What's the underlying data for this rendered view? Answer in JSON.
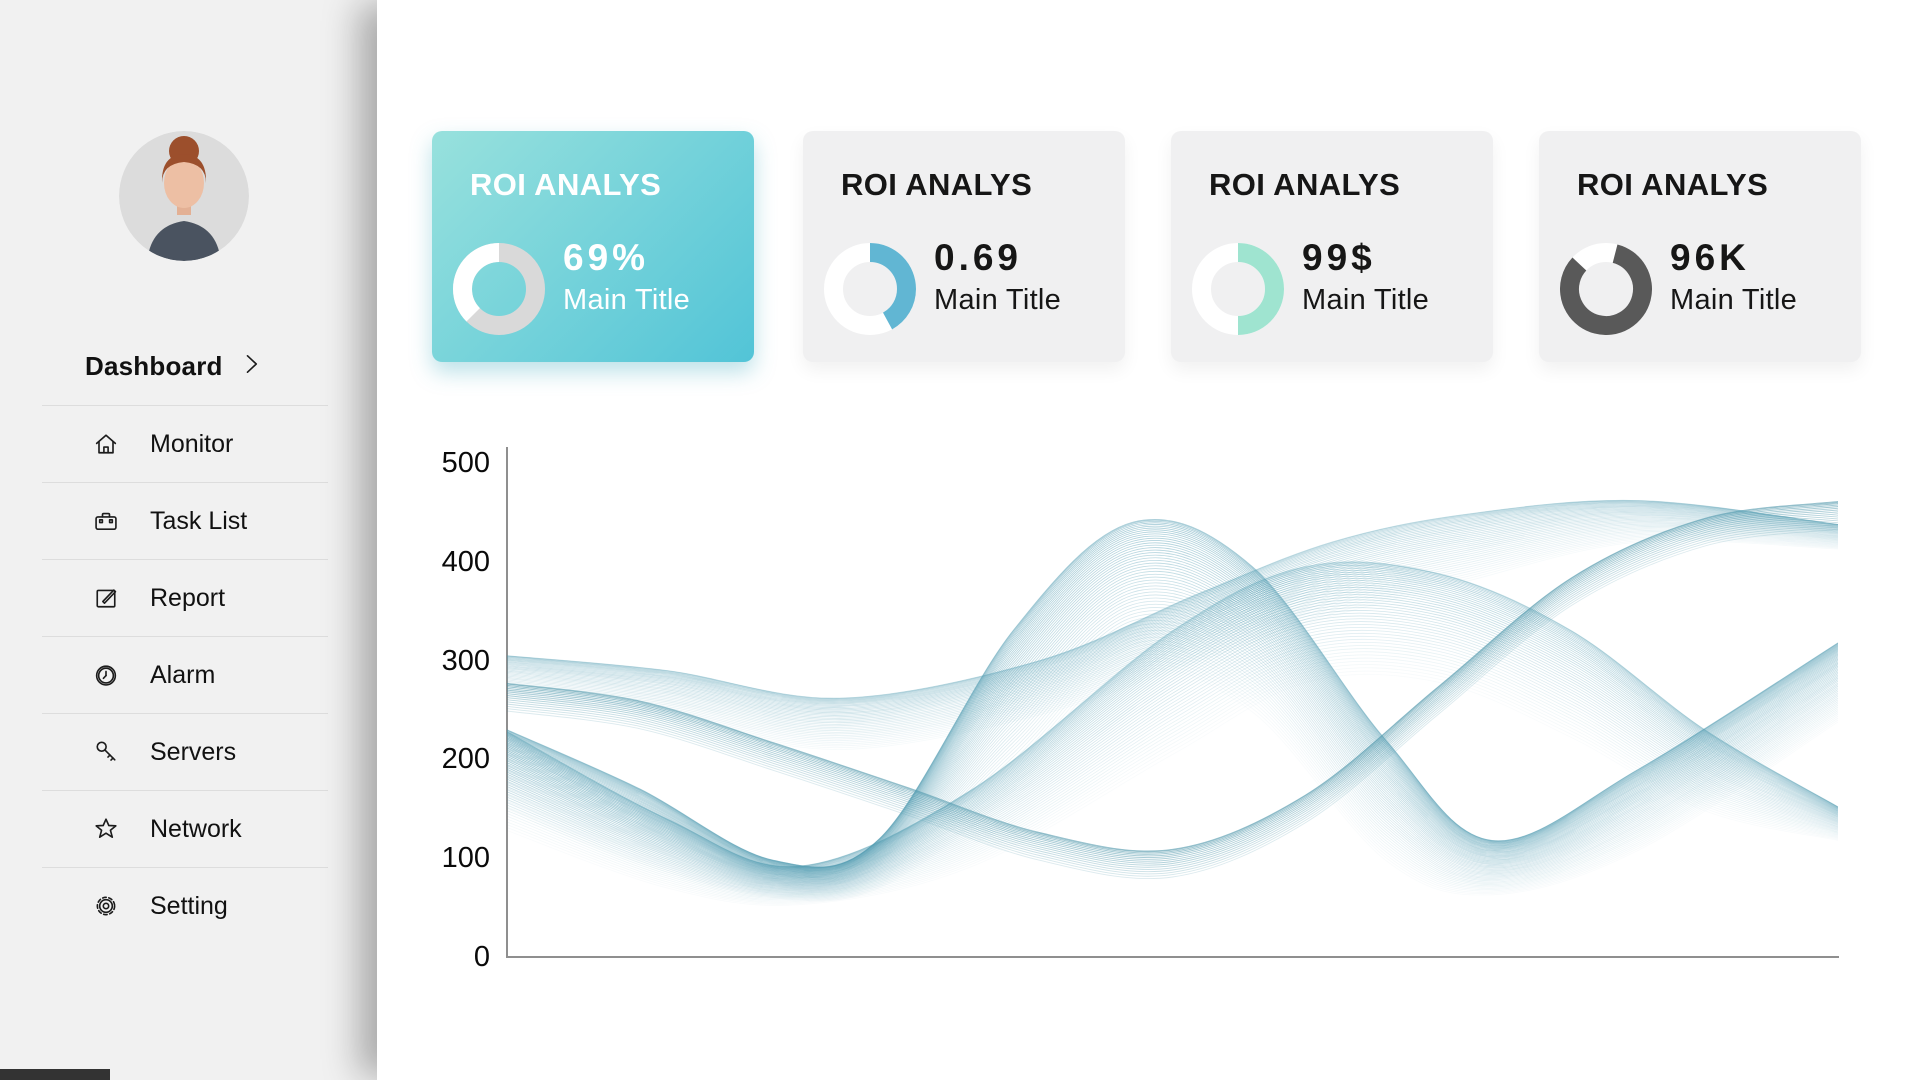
{
  "colors": {
    "sidebar_bg": "#f1f1f1",
    "card_bg": "#f0f0f1",
    "card_gradient_start": "#98e1dd",
    "card_gradient_end": "#52c4d7",
    "wave_color": "#4e9ab0",
    "donut_blue": "#61b6d3",
    "donut_mint": "#9fe4d0",
    "donut_dark_gray": "#595959",
    "donut_track_gray": "#d9d9d9",
    "bottom_left_bar": "#333333"
  },
  "sidebar": {
    "section_label": "Dashboard",
    "items": [
      {
        "icon": "home-icon",
        "label": "Monitor"
      },
      {
        "icon": "briefcase-icon",
        "label": "Task List"
      },
      {
        "icon": "edit-icon",
        "label": "Report"
      },
      {
        "icon": "clock-icon",
        "label": "Alarm"
      },
      {
        "icon": "key-icon",
        "label": "Servers"
      },
      {
        "icon": "star-icon",
        "label": "Network"
      },
      {
        "icon": "gear-icon",
        "label": "Setting"
      }
    ]
  },
  "cards": [
    {
      "title": "ROI ANALYS",
      "value": "69%",
      "subtitle": "Main Title",
      "highlighted": true,
      "donut": {
        "base": "#d9d9d9",
        "seg": "#ffffff",
        "pct": 37.5,
        "start": 62.5
      }
    },
    {
      "title": "ROI ANALYS",
      "value": "0.69",
      "subtitle": "Main Title",
      "highlighted": false,
      "donut": {
        "base": "#ffffff",
        "seg": "#61b6d3",
        "pct": 42,
        "start": 0
      }
    },
    {
      "title": "ROI ANALYS",
      "value": "99$",
      "subtitle": "Main Title",
      "highlighted": false,
      "donut": {
        "base": "#ffffff",
        "seg": "#9fe4d0",
        "pct": 50,
        "start": 0
      }
    },
    {
      "title": "ROI ANALYS",
      "value": "96K",
      "subtitle": "Main Title",
      "highlighted": false,
      "donut": {
        "base": "#ffffff",
        "seg": "#595959",
        "pct": 83,
        "start": 4
      }
    }
  ],
  "chart_data": {
    "type": "line",
    "title": "",
    "xlabel": "",
    "ylabel": "",
    "ylim": [
      0,
      500
    ],
    "yticks": [
      500,
      400,
      300,
      200,
      100,
      0
    ],
    "grid": false,
    "legend": null,
    "style": "abstract translucent wave-bundle flow lines",
    "line_color": "#4e9ab0",
    "bundles": [
      {
        "name": "dense-band-left-to-topright",
        "lines": 16,
        "stroke_width": 0.9,
        "color": "#3e8ca2",
        "opacity_front": 0.55,
        "opacity_back": 0.18,
        "x": [
          0,
          0.1,
          0.2,
          0.3,
          0.4,
          0.5,
          0.6,
          0.7,
          0.8,
          0.9,
          1
        ],
        "front": [
          277,
          259,
          217,
          172,
          126,
          109,
          164,
          274,
          384,
          444,
          461
        ],
        "back": [
          249,
          231,
          189,
          144,
          98,
          81,
          136,
          246,
          356,
          416,
          433
        ]
      },
      {
        "name": "central-peak-fan",
        "lines": 55,
        "stroke_width": 0.8,
        "color": "#4e9ab0",
        "opacity_front": 0.5,
        "opacity_back": 0.035,
        "x": [
          0,
          0.1,
          0.2,
          0.28,
          0.38,
          0.47,
          0.56,
          0.66,
          0.74,
          0.85,
          1
        ],
        "front": [
          230,
          170,
          98,
          120,
          330,
          440,
          395,
          220,
          118,
          190,
          318
        ],
        "back": [
          148,
          95,
          60,
          70,
          168,
          288,
          248,
          98,
          63,
          108,
          238
        ]
      },
      {
        "name": "rising-topright-arc",
        "lines": 38,
        "stroke_width": 0.8,
        "color": "#4e9ab0",
        "opacity_front": 0.38,
        "opacity_back": 0.05,
        "x": [
          0,
          0.12,
          0.25,
          0.4,
          0.52,
          0.62,
          0.72,
          0.85,
          1
        ],
        "front": [
          305,
          290,
          262,
          300,
          368,
          420,
          448,
          462,
          438
        ],
        "back": [
          262,
          240,
          210,
          245,
          300,
          345,
          380,
          420,
          413
        ]
      },
      {
        "name": "low-arc-to-bottomright",
        "lines": 45,
        "stroke_width": 0.8,
        "color": "#4e9ab0",
        "opacity_front": 0.42,
        "opacity_back": 0.035,
        "x": [
          0,
          0.12,
          0.22,
          0.35,
          0.5,
          0.6,
          0.7,
          0.8,
          0.9,
          1
        ],
        "front": [
          228,
          140,
          92,
          170,
          330,
          395,
          388,
          330,
          230,
          152
        ],
        "back": [
          128,
          70,
          53,
          92,
          205,
          278,
          278,
          222,
          148,
          118
        ]
      }
    ]
  }
}
